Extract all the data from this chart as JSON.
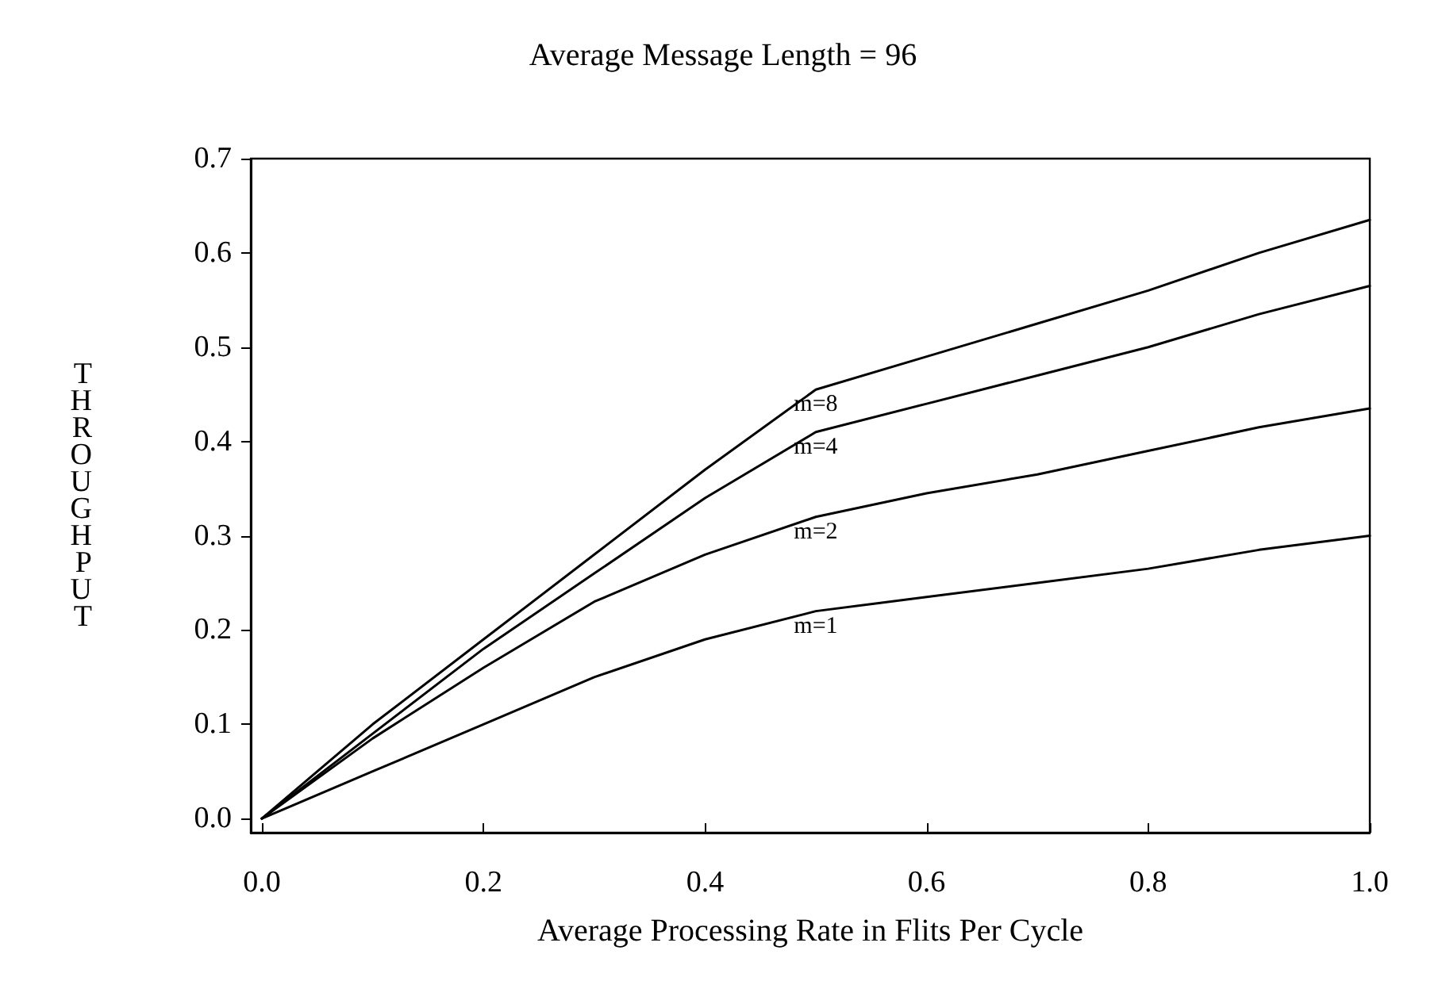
{
  "chart_data": {
    "type": "line",
    "title": "Average Message Length = 96",
    "xlabel": "Average Processing Rate in Flits Per Cycle",
    "ylabel": "THROUGHPUT",
    "x": [
      0,
      0.1,
      0.2,
      0.3,
      0.4,
      0.5,
      0.6,
      0.7,
      0.8,
      0.9,
      1.0
    ],
    "series": [
      {
        "name": "m=8",
        "color": "#000000",
        "values": [
          0,
          0.1,
          0.19,
          0.28,
          0.37,
          0.455,
          0.49,
          0.525,
          0.56,
          0.6,
          0.635
        ]
      },
      {
        "name": "m=4",
        "color": "#000000",
        "values": [
          0,
          0.09,
          0.18,
          0.26,
          0.34,
          0.41,
          0.44,
          0.47,
          0.5,
          0.535,
          0.565
        ]
      },
      {
        "name": "m=2",
        "color": "#000000",
        "values": [
          0,
          0.085,
          0.16,
          0.23,
          0.28,
          0.32,
          0.345,
          0.365,
          0.39,
          0.415,
          0.435
        ]
      },
      {
        "name": "m=1",
        "color": "#000000",
        "values": [
          0,
          0.05,
          0.1,
          0.15,
          0.19,
          0.22,
          0.235,
          0.25,
          0.265,
          0.285,
          0.3
        ]
      }
    ],
    "xlim": [
      -0.01,
      1.0
    ],
    "xticks": [
      {
        "value": 0,
        "label": "0.0"
      },
      0.2,
      0.4,
      0.6,
      0.8,
      {
        "value": 1,
        "label": "1.0"
      }
    ],
    "ylim": [
      -0.015,
      0.7
    ],
    "yticks": [
      {
        "value": 0,
        "label": "0.0"
      },
      0.1,
      0.2,
      0.3,
      0.4,
      0.5,
      0.6,
      0.7
    ],
    "grid": false,
    "legend": false,
    "marker": "none",
    "line_style": "solid"
  }
}
